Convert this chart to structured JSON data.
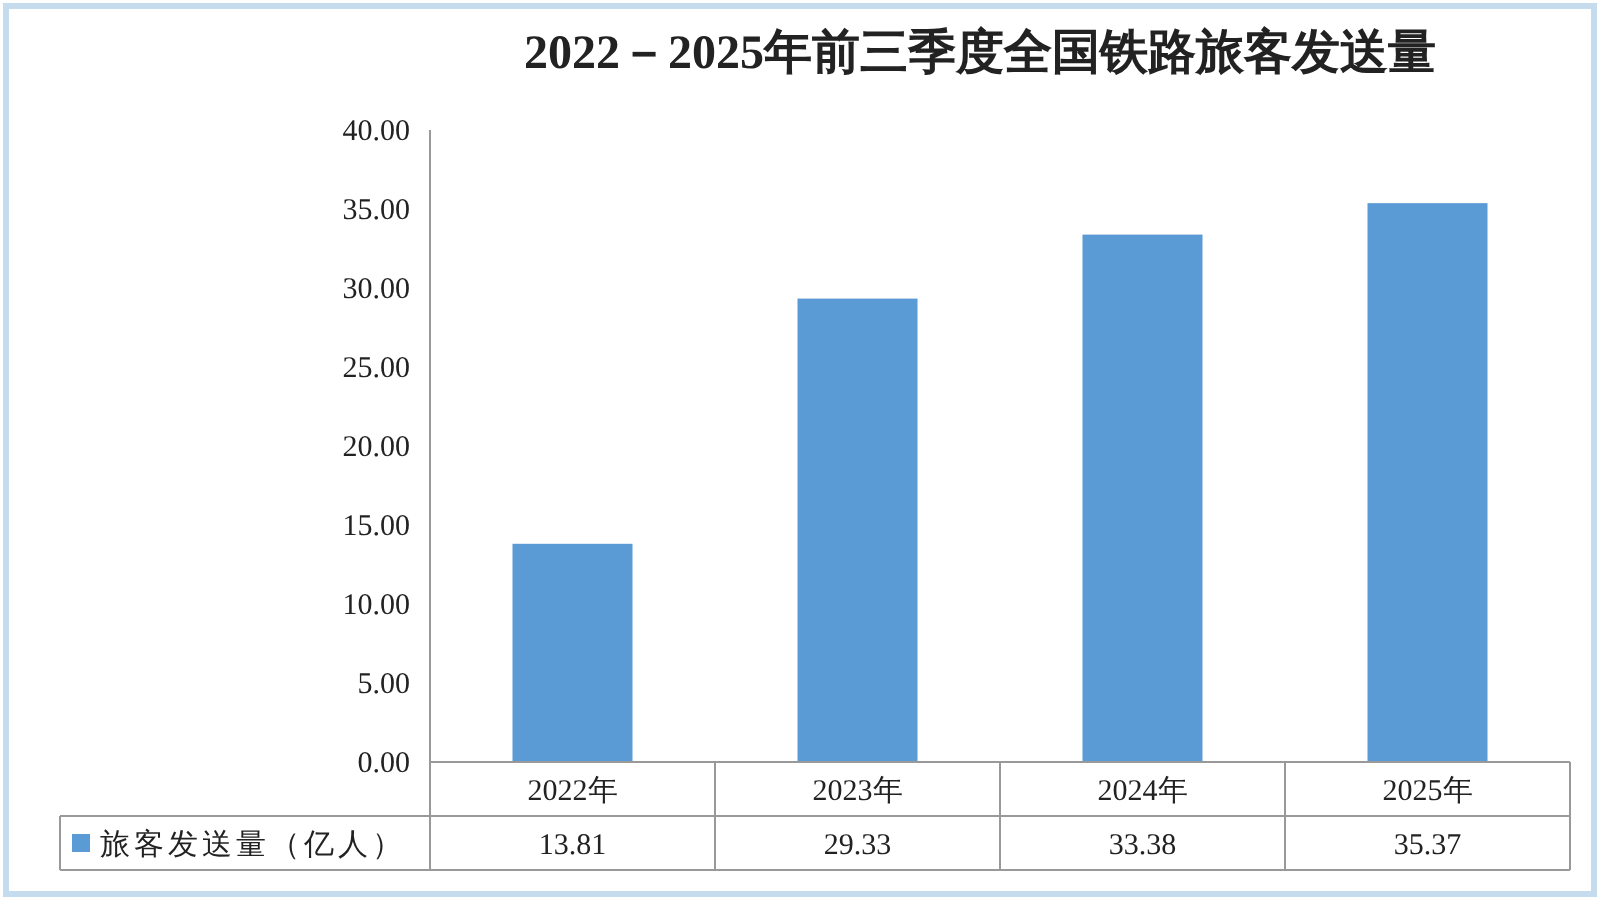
{
  "chart_data": {
    "type": "bar",
    "title": "2022－2025年前三季度全国铁路旅客发送量",
    "categories": [
      "2022年",
      "2023年",
      "2024年",
      "2025年"
    ],
    "series": [
      {
        "name": "旅客发送量（亿人）",
        "color": "#5b9bd5",
        "values": [
          13.81,
          29.33,
          33.38,
          35.37
        ]
      }
    ],
    "ylim": [
      0,
      40
    ],
    "yticks": [
      {
        "value": 0,
        "label": "0.00"
      },
      {
        "value": 5,
        "label": "5.00"
      },
      {
        "value": 10,
        "label": "10.00"
      },
      {
        "value": 15,
        "label": "15.00"
      },
      {
        "value": 20,
        "label": "20.00"
      },
      {
        "value": 25,
        "label": "25.00"
      },
      {
        "value": 30,
        "label": "30.00"
      },
      {
        "value": 35,
        "label": "35.00"
      },
      {
        "value": 40,
        "label": "40.00"
      }
    ],
    "data_labels": true,
    "legend": "bottom"
  }
}
